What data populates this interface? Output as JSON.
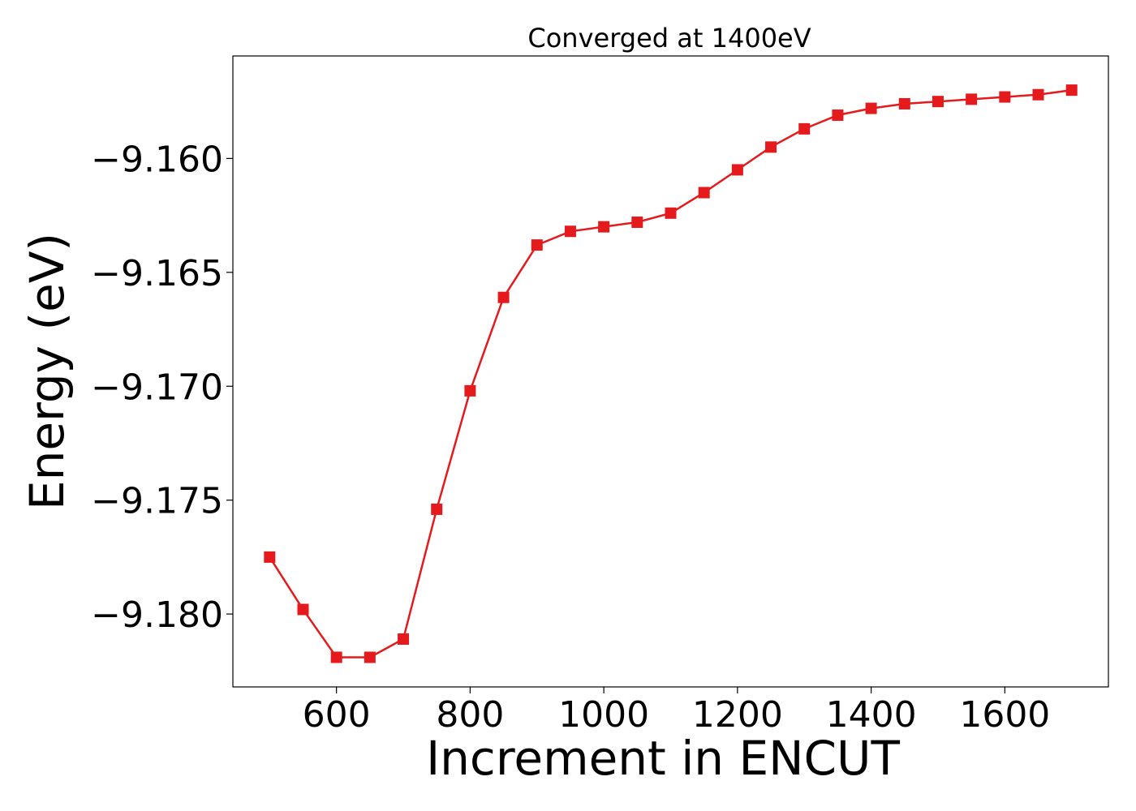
{
  "chart_data": {
    "type": "line",
    "title": "Converged at 1400eV",
    "xlabel": "Increment in ENCUT",
    "ylabel": "Energy (eV)",
    "xlim": [
      445,
      1755
    ],
    "ylim": [
      -9.1832,
      -9.1555
    ],
    "x_ticks": [
      600,
      800,
      1000,
      1200,
      1400,
      1600
    ],
    "x_tick_labels": [
      "600",
      "800",
      "1000",
      "1200",
      "1400",
      "1600"
    ],
    "y_ticks": [
      -9.16,
      -9.165,
      -9.17,
      -9.175,
      -9.18
    ],
    "y_tick_labels": [
      "−9.160",
      "−9.165",
      "−9.170",
      "−9.175",
      "−9.180"
    ],
    "grid": false,
    "marker": "square",
    "series": [
      {
        "color": "#e41a1c",
        "x": [
          500,
          550,
          600,
          650,
          700,
          750,
          800,
          850,
          900,
          950,
          1000,
          1050,
          1100,
          1150,
          1200,
          1250,
          1300,
          1350,
          1400,
          1450,
          1500,
          1550,
          1600,
          1650,
          1700
        ],
        "y": [
          -9.1775,
          -9.1798,
          -9.1819,
          -9.1819,
          -9.1811,
          -9.1754,
          -9.1702,
          -9.1661,
          -9.1638,
          -9.1632,
          -9.163,
          -9.1628,
          -9.1624,
          -9.1615,
          -9.1605,
          -9.1595,
          -9.1587,
          -9.1581,
          -9.1578,
          -9.1576,
          -9.1575,
          -9.1574,
          -9.1573,
          -9.1572,
          -9.157
        ]
      }
    ]
  }
}
